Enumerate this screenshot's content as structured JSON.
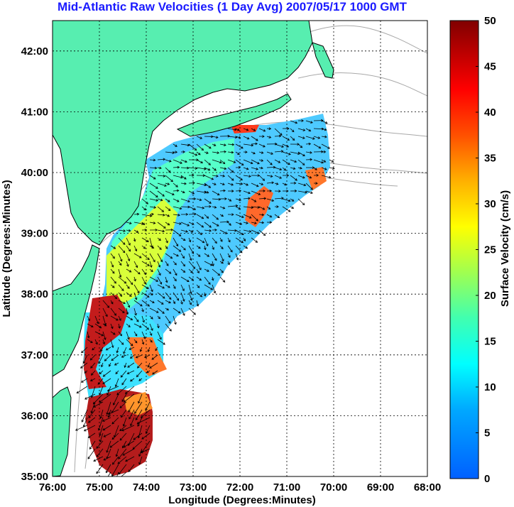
{
  "title": "Mid-Atlantic Raw Velocities (1 Day Avg) 2007/05/17 1000 GMT",
  "x_axis": {
    "label": "Longitude (Degrees:Minutes)",
    "ticks": [
      "76:00",
      "75:00",
      "74:00",
      "73:00",
      "72:00",
      "71:00",
      "70:00",
      "69:00",
      "68:00"
    ],
    "range": [
      -76,
      -68
    ]
  },
  "y_axis": {
    "label": "Latitude (Degrees:Minutes)",
    "ticks": [
      "35:00",
      "36:00",
      "37:00",
      "38:00",
      "39:00",
      "40:00",
      "41:00",
      "42:00"
    ],
    "range": [
      35,
      42.5
    ]
  },
  "colorbar": {
    "label": "Surface Velocity (cm/s)",
    "ticks": [
      "0",
      "5",
      "10",
      "15",
      "20",
      "25",
      "30",
      "35",
      "40",
      "45",
      "50"
    ],
    "range": [
      0,
      50
    ],
    "colormap": "jet"
  },
  "colors": {
    "land": "#57eeb0",
    "coastline": "#000000",
    "bathymetry": "#a8a8a8",
    "grid": "#000000",
    "title": "#1a1aff",
    "vectors": "#000000"
  },
  "grid": true
}
